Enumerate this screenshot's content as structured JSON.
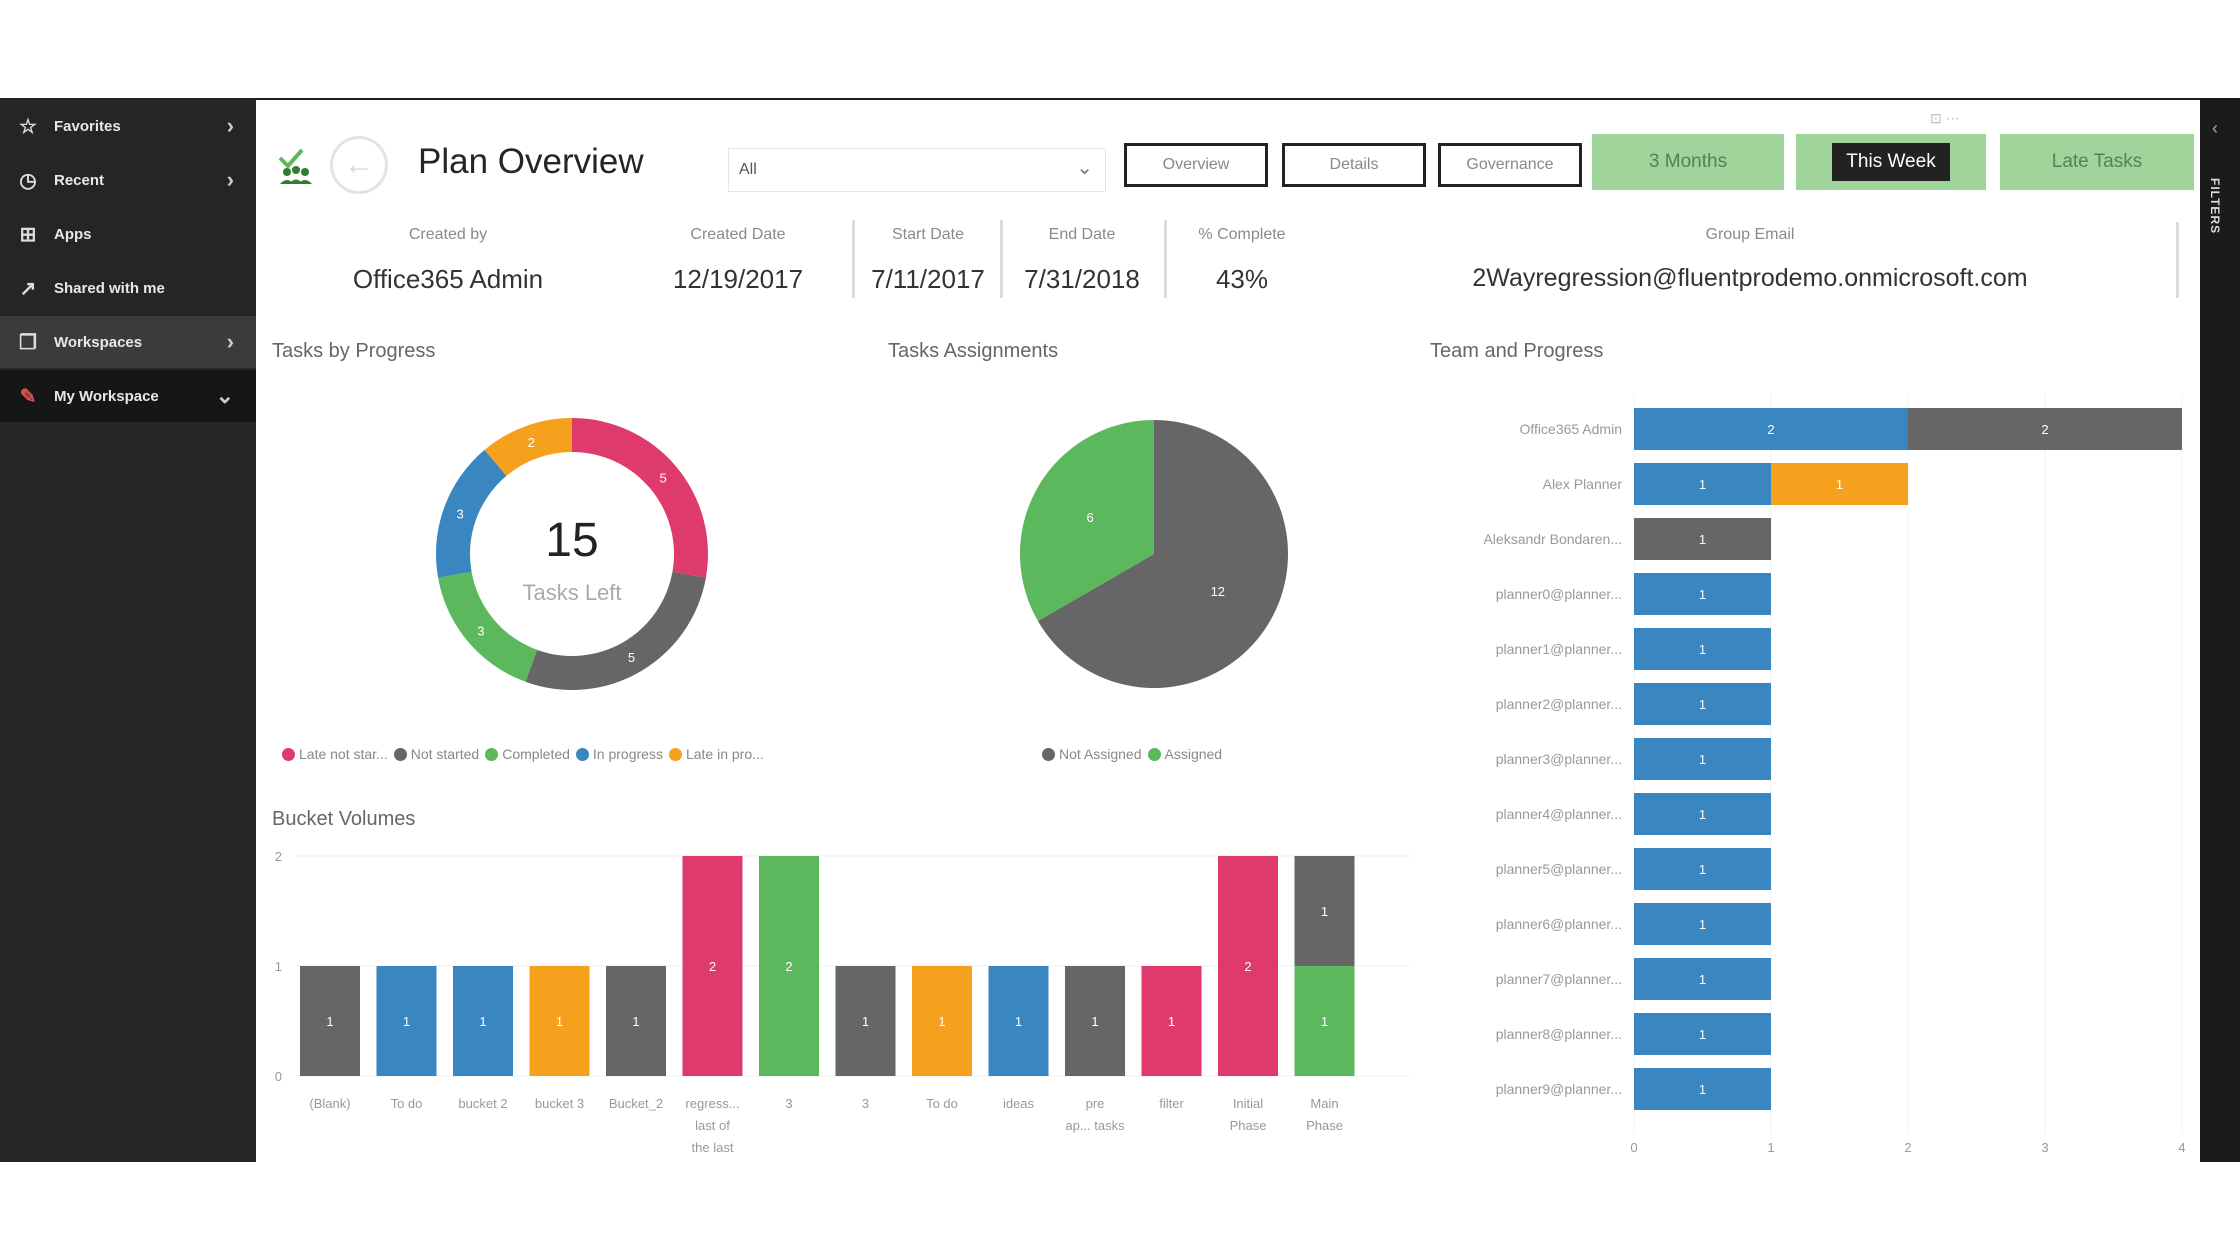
{
  "colors": {
    "blue": "#3a86c0",
    "grey": "#666666",
    "green": "#5cb85c",
    "pink": "#de3a6b",
    "orange": "#f5a11d",
    "button_green": "#9fd49a"
  },
  "sidebar": {
    "items": [
      {
        "label": "Favorites",
        "icon": "star-icon"
      },
      {
        "label": "Recent",
        "icon": "clock-icon"
      },
      {
        "label": "Apps",
        "icon": "apps-icon"
      },
      {
        "label": "Shared with me",
        "icon": "share-icon"
      },
      {
        "label": "Workspaces",
        "icon": "workspaces-icon"
      },
      {
        "label": "My Workspace",
        "icon": "avatar-icon"
      }
    ]
  },
  "rightbar": {
    "label": "FILTERS"
  },
  "header": {
    "title": "Plan Overview",
    "filter_value": "All",
    "nav_buttons": [
      "Overview",
      "Details",
      "Governance"
    ],
    "filter_buttons": [
      "3 Months",
      "This Week",
      "Late Tasks"
    ]
  },
  "kpis": [
    {
      "label": "Created by",
      "value": "Office365 Admin"
    },
    {
      "label": "Created Date",
      "value": "12/19/2017"
    },
    {
      "label": "Start Date",
      "value": "7/11/2017"
    },
    {
      "label": "End Date",
      "value": "7/31/2018"
    },
    {
      "label": "% Complete",
      "value": "43%"
    },
    {
      "label": "Group Email",
      "value": "2Wayregression@fluentprodemo.onmicrosoft.com"
    }
  ],
  "chart_data": [
    {
      "type": "pie",
      "variant": "donut",
      "title": "Tasks by Progress",
      "center_value": "15",
      "center_label": "Tasks Left",
      "slices": [
        {
          "label": "Late not star...",
          "value": 5,
          "color": "#de3a6b"
        },
        {
          "label": "Not started",
          "value": 5,
          "color": "#666666"
        },
        {
          "label": "Completed",
          "value": 3,
          "color": "#5cb85c"
        },
        {
          "label": "In progress",
          "value": 3,
          "color": "#3a86c0"
        },
        {
          "label": "Late in pro...",
          "value": 2,
          "color": "#f5a11d"
        }
      ]
    },
    {
      "type": "pie",
      "title": "Tasks Assignments",
      "slices": [
        {
          "label": "Not Assigned",
          "value": 12,
          "color": "#666666"
        },
        {
          "label": "Assigned",
          "value": 6,
          "color": "#5cb85c"
        }
      ]
    },
    {
      "type": "bar",
      "title": "Bucket Volumes",
      "ylim": [
        0,
        2
      ],
      "yticks": [
        "0",
        "1",
        "2"
      ],
      "bars": [
        {
          "category": "(Blank)",
          "segments": [
            {
              "value": 1,
              "color": "#666666"
            }
          ]
        },
        {
          "category": "To do",
          "segments": [
            {
              "value": 1,
              "color": "#3a86c0"
            }
          ]
        },
        {
          "category": "bucket 2",
          "segments": [
            {
              "value": 1,
              "color": "#3a86c0"
            }
          ]
        },
        {
          "category": "bucket 3",
          "segments": [
            {
              "value": 1,
              "color": "#f5a11d"
            }
          ]
        },
        {
          "category": "Bucket_2",
          "segments": [
            {
              "value": 1,
              "color": "#666666"
            }
          ]
        },
        {
          "category": "regress... last of the last",
          "segments": [
            {
              "value": 2,
              "color": "#de3a6b"
            }
          ]
        },
        {
          "category": "3",
          "segments": [
            {
              "value": 2,
              "color": "#5cb85c"
            }
          ]
        },
        {
          "category": "3",
          "segments": [
            {
              "value": 1,
              "color": "#666666"
            }
          ]
        },
        {
          "category": "To do",
          "segments": [
            {
              "value": 1,
              "color": "#f5a11d"
            }
          ]
        },
        {
          "category": "ideas",
          "segments": [
            {
              "value": 1,
              "color": "#3a86c0"
            }
          ]
        },
        {
          "category": "pre ap... tasks",
          "segments": [
            {
              "value": 1,
              "color": "#666666"
            }
          ]
        },
        {
          "category": "filter",
          "segments": [
            {
              "value": 1,
              "color": "#de3a6b"
            }
          ]
        },
        {
          "category": "Initial Phase",
          "segments": [
            {
              "value": 2,
              "color": "#de3a6b"
            }
          ]
        },
        {
          "category": "Main Phase",
          "segments": [
            {
              "value": 1,
              "color": "#5cb85c"
            },
            {
              "value": 1,
              "color": "#666666"
            }
          ]
        }
      ]
    },
    {
      "type": "bar",
      "orientation": "horizontal",
      "title": "Team and Progress",
      "xlim": [
        0,
        4
      ],
      "xticks": [
        "0",
        "1",
        "2",
        "3",
        "4"
      ],
      "rows": [
        {
          "label": "Office365 Admin",
          "segments": [
            {
              "value": 2,
              "color": "#3a86c0"
            },
            {
              "value": 2,
              "color": "#666666"
            }
          ]
        },
        {
          "label": "Alex Planner",
          "segments": [
            {
              "value": 1,
              "color": "#3a86c0"
            },
            {
              "value": 1,
              "color": "#f5a11d"
            }
          ]
        },
        {
          "label": "Aleksandr Bondaren...",
          "segments": [
            {
              "value": 1,
              "color": "#666666"
            }
          ]
        },
        {
          "label": "planner0@planner...",
          "segments": [
            {
              "value": 1,
              "color": "#3a86c0"
            }
          ]
        },
        {
          "label": "planner1@planner...",
          "segments": [
            {
              "value": 1,
              "color": "#3a86c0"
            }
          ]
        },
        {
          "label": "planner2@planner...",
          "segments": [
            {
              "value": 1,
              "color": "#3a86c0"
            }
          ]
        },
        {
          "label": "planner3@planner...",
          "segments": [
            {
              "value": 1,
              "color": "#3a86c0"
            }
          ]
        },
        {
          "label": "planner4@planner...",
          "segments": [
            {
              "value": 1,
              "color": "#3a86c0"
            }
          ]
        },
        {
          "label": "planner5@planner...",
          "segments": [
            {
              "value": 1,
              "color": "#3a86c0"
            }
          ]
        },
        {
          "label": "planner6@planner...",
          "segments": [
            {
              "value": 1,
              "color": "#3a86c0"
            }
          ]
        },
        {
          "label": "planner7@planner...",
          "segments": [
            {
              "value": 1,
              "color": "#3a86c0"
            }
          ]
        },
        {
          "label": "planner8@planner...",
          "segments": [
            {
              "value": 1,
              "color": "#3a86c0"
            }
          ]
        },
        {
          "label": "planner9@planner...",
          "segments": [
            {
              "value": 1,
              "color": "#3a86c0"
            }
          ]
        }
      ]
    }
  ]
}
